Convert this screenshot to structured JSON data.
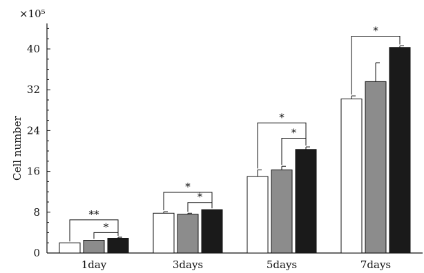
{
  "chart_data": {
    "type": "bar",
    "title": "",
    "xlabel": "",
    "ylabel": "Cell number",
    "y_multiplier": "×10⁵",
    "ylim": [
      0,
      45
    ],
    "yticks": [
      0,
      8,
      16,
      24,
      32,
      40
    ],
    "categories": [
      "1day",
      "3days",
      "5days",
      "7days"
    ],
    "series": [
      {
        "values": [
          2.0,
          7.8,
          15.0,
          30.2
        ],
        "errors": [
          0,
          0.3,
          1.3,
          0.6
        ],
        "color": "#ffffff"
      },
      {
        "values": [
          2.5,
          7.6,
          16.3,
          33.6
        ],
        "errors": [
          0,
          0.2,
          0.7,
          3.7
        ],
        "color": "#8c8c8c"
      },
      {
        "values": [
          2.9,
          8.5,
          20.3,
          40.3
        ],
        "errors": [
          0.2,
          0,
          0.5,
          0.3
        ],
        "color": "#1a1a1a"
      }
    ],
    "significance": [
      {
        "category": 0,
        "from": 0,
        "to": 2,
        "label": "**",
        "level": 6.5
      },
      {
        "category": 0,
        "from": 1,
        "to": 2,
        "label": "*",
        "level": 4.0
      },
      {
        "category": 1,
        "from": 0,
        "to": 2,
        "label": "*",
        "level": 11.9
      },
      {
        "category": 1,
        "from": 1,
        "to": 2,
        "label": "*",
        "level": 9.9
      },
      {
        "category": 2,
        "from": 0,
        "to": 2,
        "label": "*",
        "level": 25.5
      },
      {
        "category": 2,
        "from": 1,
        "to": 2,
        "label": "*",
        "level": 22.5
      },
      {
        "category": 3,
        "from": 0,
        "to": 2,
        "label": "*",
        "level": 42.5
      }
    ],
    "grid": false,
    "legend": "none"
  }
}
